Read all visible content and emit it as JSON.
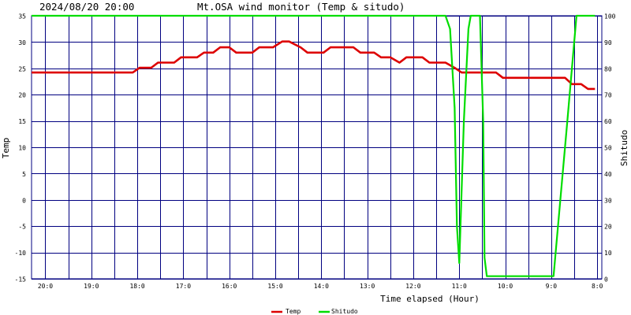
{
  "header": {
    "datetime": "2024/08/20 20:00",
    "title": "Mt.OSA wind monitor (Temp & situdo)"
  },
  "chart_data": {
    "type": "line",
    "title": "Mt.OSA wind monitor (Temp & situdo)",
    "xlabel": "Time elapsed (Hour)",
    "ylabel_left": "Temp",
    "ylabel_right": "Shitudo",
    "ylim_left": [
      -15,
      35
    ],
    "ylim_right": [
      0,
      100
    ],
    "xlim": [
      20.3,
      7.9
    ],
    "x_ticks": [
      {
        "value": 20,
        "label": "20:0"
      },
      {
        "value": 19,
        "label": "19:0"
      },
      {
        "value": 18,
        "label": "18:0"
      },
      {
        "value": 17,
        "label": "17:0"
      },
      {
        "value": 16,
        "label": "16:0"
      },
      {
        "value": 15,
        "label": "15:0"
      },
      {
        "value": 14,
        "label": "14:0"
      },
      {
        "value": 13,
        "label": "13:0"
      },
      {
        "value": 12,
        "label": "12:0"
      },
      {
        "value": 11,
        "label": "11:0"
      },
      {
        "value": 10,
        "label": "10:0"
      },
      {
        "value": 9,
        "label": "9:0"
      },
      {
        "value": 8,
        "label": "8:0"
      }
    ],
    "y_ticks_left": [
      "-15",
      "-10",
      "-5",
      "0",
      "5",
      "10",
      "15",
      "20",
      "25",
      "30",
      "35"
    ],
    "y_ticks_right": [
      "0",
      "10",
      "20",
      "30",
      "40",
      "50",
      "60",
      "70",
      "80",
      "90",
      "100"
    ],
    "grid": true,
    "legend_position": "bottom-center",
    "series": [
      {
        "name": "Temp",
        "axis": "left",
        "color": "#dd0000",
        "points": [
          [
            20.3,
            24.2
          ],
          [
            18.1,
            24.2
          ],
          [
            17.95,
            25.1
          ],
          [
            17.7,
            25.1
          ],
          [
            17.55,
            26.1
          ],
          [
            17.2,
            26.1
          ],
          [
            17.05,
            27.1
          ],
          [
            16.7,
            27.1
          ],
          [
            16.55,
            28.0
          ],
          [
            16.35,
            28.0
          ],
          [
            16.2,
            29.0
          ],
          [
            16.0,
            29.0
          ],
          [
            15.85,
            28.0
          ],
          [
            15.5,
            28.0
          ],
          [
            15.35,
            29.0
          ],
          [
            15.05,
            29.0
          ],
          [
            14.85,
            30.1
          ],
          [
            14.7,
            30.1
          ],
          [
            14.45,
            29.0
          ],
          [
            14.3,
            28.0
          ],
          [
            13.95,
            28.0
          ],
          [
            13.8,
            29.0
          ],
          [
            13.3,
            29.0
          ],
          [
            13.15,
            28.0
          ],
          [
            12.85,
            28.0
          ],
          [
            12.7,
            27.1
          ],
          [
            12.5,
            27.1
          ],
          [
            12.3,
            26.1
          ],
          [
            12.15,
            27.1
          ],
          [
            11.8,
            27.1
          ],
          [
            11.65,
            26.1
          ],
          [
            11.3,
            26.1
          ],
          [
            11.1,
            25.1
          ],
          [
            10.95,
            24.2
          ],
          [
            10.2,
            24.2
          ],
          [
            10.05,
            23.2
          ],
          [
            9.3,
            23.2
          ],
          [
            9.15,
            23.2
          ],
          [
            8.9,
            23.2
          ],
          [
            8.7,
            23.2
          ],
          [
            8.55,
            22.0
          ],
          [
            8.35,
            22.0
          ],
          [
            8.2,
            21.1
          ],
          [
            8.05,
            21.1
          ]
        ]
      },
      {
        "name": "Shitudo",
        "axis": "right",
        "color": "#00dd00",
        "points": [
          [
            20.3,
            100
          ],
          [
            11.3,
            100
          ],
          [
            11.2,
            95
          ],
          [
            11.1,
            65
          ],
          [
            11.05,
            20
          ],
          [
            11.0,
            6
          ],
          [
            10.9,
            60
          ],
          [
            10.8,
            95
          ],
          [
            10.75,
            100
          ],
          [
            10.55,
            100
          ],
          [
            10.48,
            60
          ],
          [
            10.45,
            8
          ],
          [
            10.4,
            1
          ],
          [
            9.2,
            1
          ],
          [
            8.95,
            1
          ],
          [
            8.65,
            60
          ],
          [
            8.45,
            100
          ],
          [
            8.05,
            100
          ]
        ]
      }
    ]
  }
}
